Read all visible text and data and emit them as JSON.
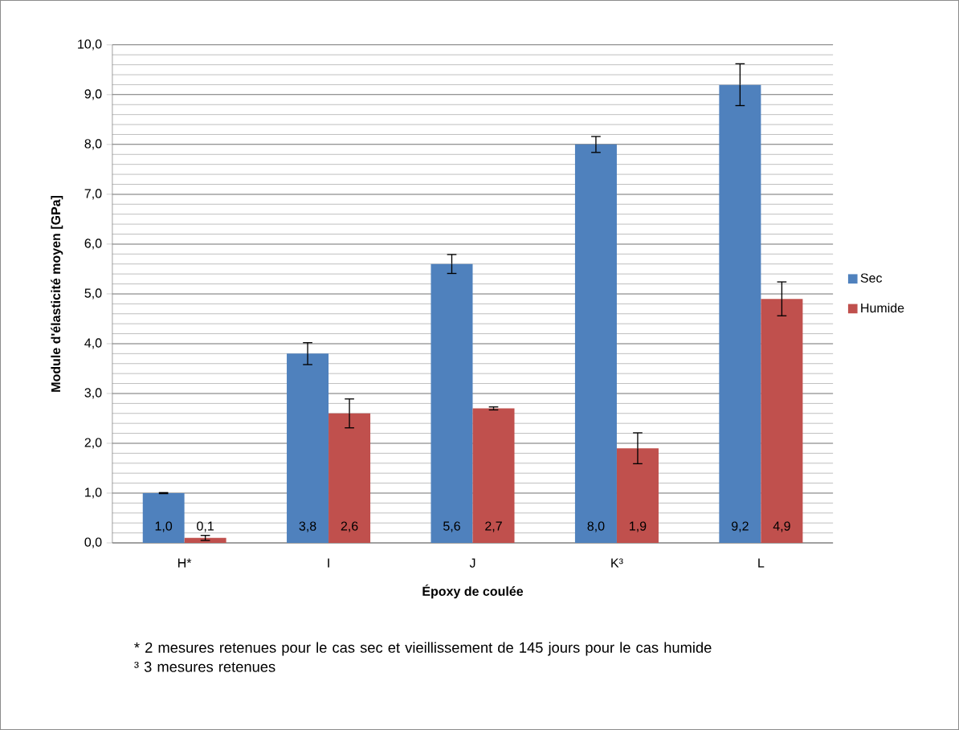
{
  "chart_data": {
    "type": "bar",
    "xlabel": "Époxy de coulée",
    "ylabel": "Module d'élasticité moyen [GPa]",
    "categories": [
      "H*",
      "I",
      "J",
      "K³",
      "L"
    ],
    "series": [
      {
        "name": "Sec",
        "color": "#4f81bd",
        "values": [
          1.0,
          3.8,
          5.6,
          8.0,
          9.2
        ],
        "errors": [
          0.01,
          0.22,
          0.19,
          0.16,
          0.42
        ],
        "value_labels": [
          "1,0",
          "3,8",
          "5,6",
          "8,0",
          "9,2"
        ]
      },
      {
        "name": "Humide",
        "color": "#c0504d",
        "values": [
          0.1,
          2.6,
          2.7,
          1.9,
          4.9
        ],
        "errors": [
          0.05,
          0.29,
          0.03,
          0.31,
          0.34
        ],
        "value_labels": [
          "0,1",
          "2,6",
          "2,7",
          "1,9",
          "4,9"
        ]
      }
    ],
    "ylim": [
      0,
      10
    ],
    "yticks": [
      {
        "value": 0,
        "label": "0,0"
      },
      {
        "value": 1,
        "label": "1,0"
      },
      {
        "value": 2,
        "label": "2,0"
      },
      {
        "value": 3,
        "label": "3,0"
      },
      {
        "value": 4,
        "label": "4,0"
      },
      {
        "value": 5,
        "label": "5,0"
      },
      {
        "value": 6,
        "label": "6,0"
      },
      {
        "value": 7,
        "label": "7,0"
      },
      {
        "value": 8,
        "label": "8,0"
      },
      {
        "value": 9,
        "label": "9,0"
      },
      {
        "value": 10,
        "label": "10,0"
      }
    ],
    "grid": true,
    "legend": "right",
    "annotations": [
      "* 2 mesures retenues pour le cas sec et vieillissement de 145 jours pour le cas humide",
      "³ 3 mesures retenues"
    ]
  }
}
